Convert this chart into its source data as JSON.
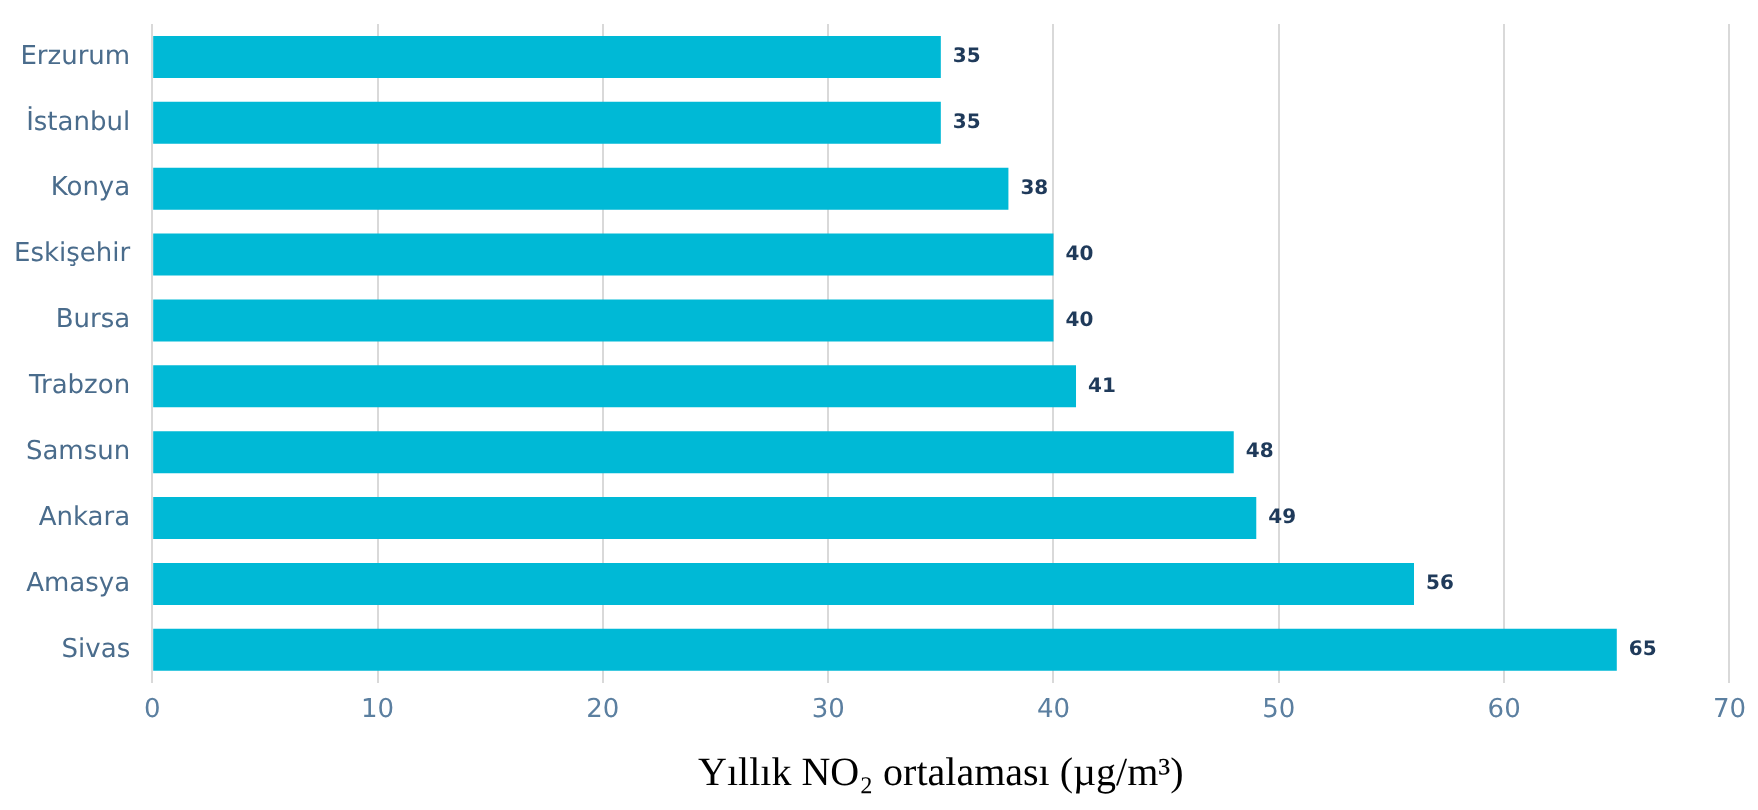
{
  "chart_data": {
    "type": "bar",
    "orientation": "horizontal",
    "xlabel": "Yıllık NO₂ ortalaması (µg/m³)",
    "categories": [
      "Erzurum",
      "İstanbul",
      "Konya",
      "Eskişehir",
      "Bursa",
      "Trabzon",
      "Samsun",
      "Ankara",
      "Amasya",
      "Sivas"
    ],
    "values": [
      35,
      35,
      38,
      40,
      40,
      41,
      48,
      49,
      56,
      65
    ],
    "color": "#00b9d6",
    "xlim": [
      0,
      70
    ],
    "xticks": [
      0,
      10,
      20,
      30,
      40,
      50,
      60,
      70
    ],
    "grid": "x",
    "data_labels": true
  }
}
